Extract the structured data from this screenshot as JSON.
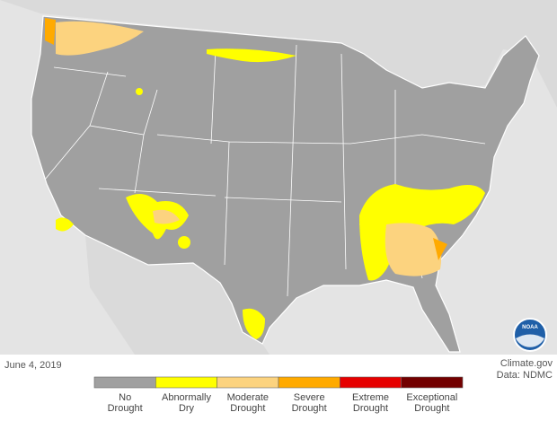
{
  "map": {
    "date": "June 4, 2019",
    "credit": "Climate.gov",
    "source": "Data: NDMC",
    "logo": "NOAA"
  },
  "legend": [
    {
      "lines": [
        "No",
        "Drought"
      ],
      "color": "#a0a0a0"
    },
    {
      "lines": [
        "Abnormally",
        "Dry"
      ],
      "color": "#ffff00"
    },
    {
      "lines": [
        "Moderate",
        "Drought"
      ],
      "color": "#fcd37f"
    },
    {
      "lines": [
        "Severe",
        "Drought"
      ],
      "color": "#ffaa00"
    },
    {
      "lines": [
        "Extreme",
        "Drought"
      ],
      "color": "#e60000"
    },
    {
      "lines": [
        "Exceptional",
        "Drought"
      ],
      "color": "#730000"
    }
  ]
}
